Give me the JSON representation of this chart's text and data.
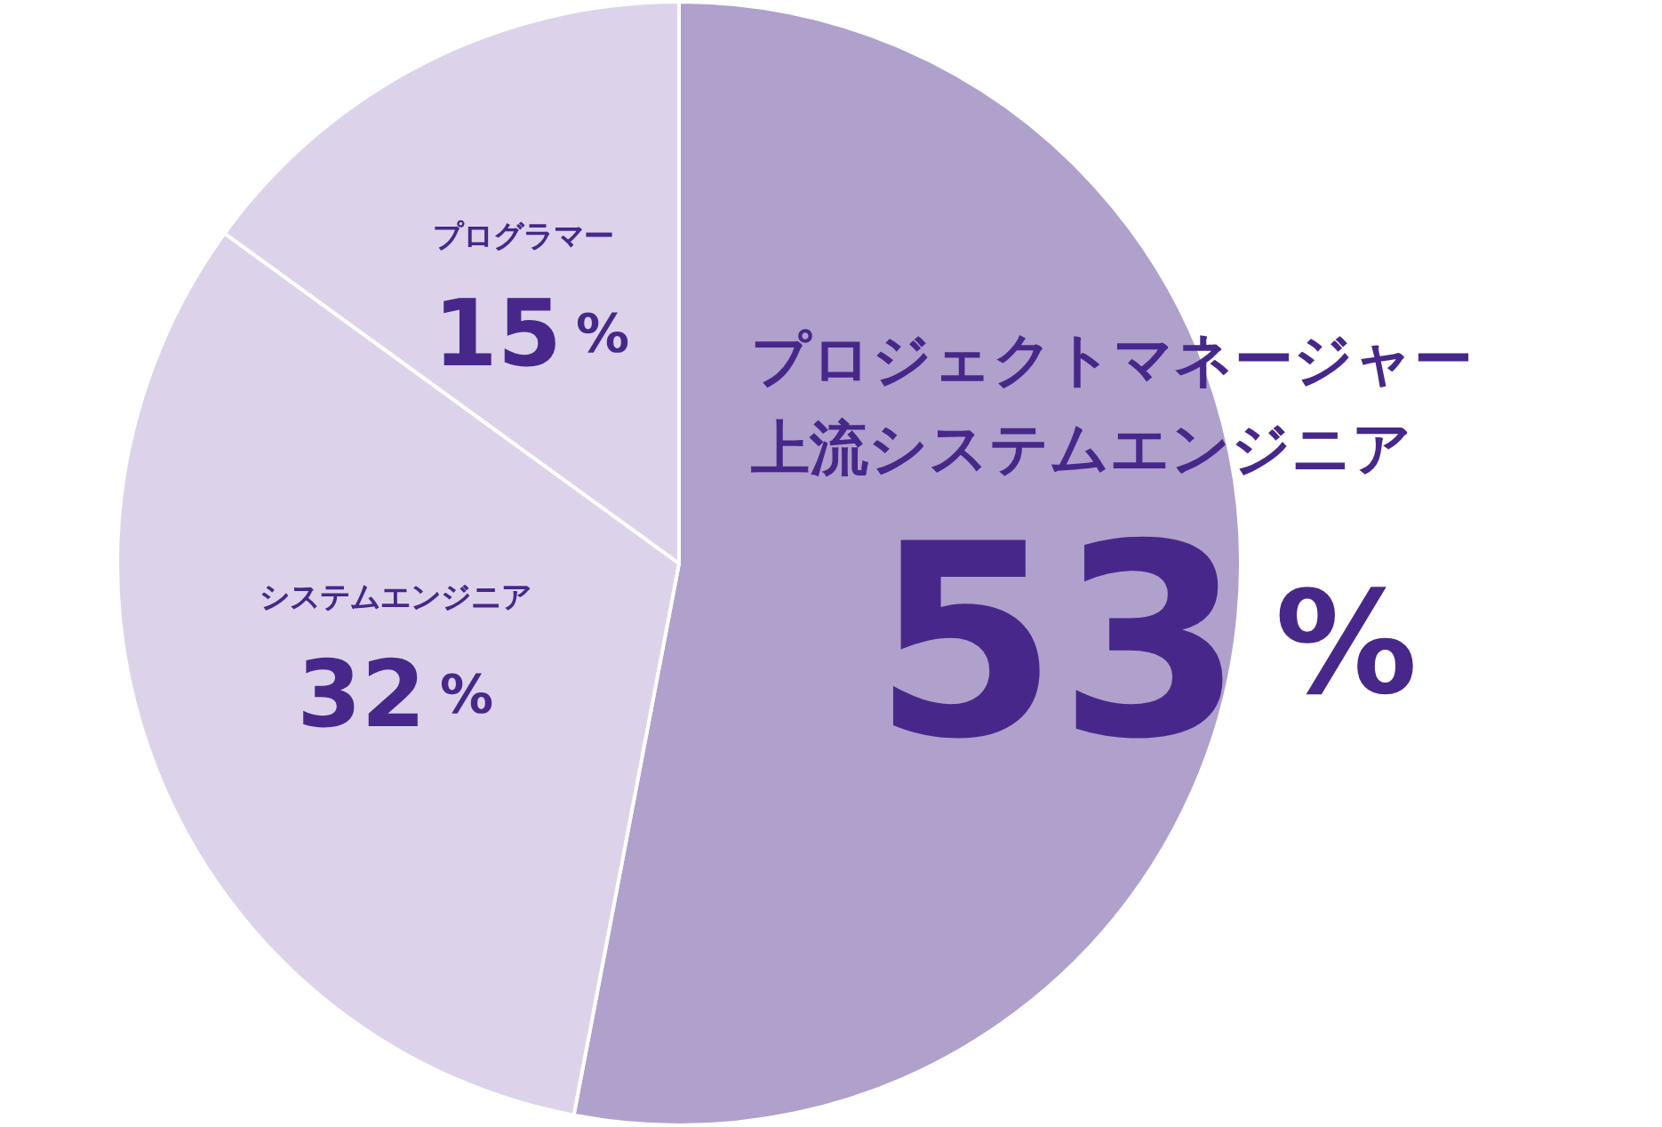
{
  "chart_data": {
    "type": "pie",
    "categories": [
      "プロジェクトマネージャー上流システムエンジニア",
      "システムエンジニア",
      "プログラマー"
    ],
    "values": [
      53,
      32,
      15
    ],
    "colors": [
      "#b0a0cc",
      "#dcd3eb",
      "#dcd3eb"
    ],
    "value_labels": [
      "53%",
      "32%",
      "15%"
    ],
    "legend": false
  }
}
